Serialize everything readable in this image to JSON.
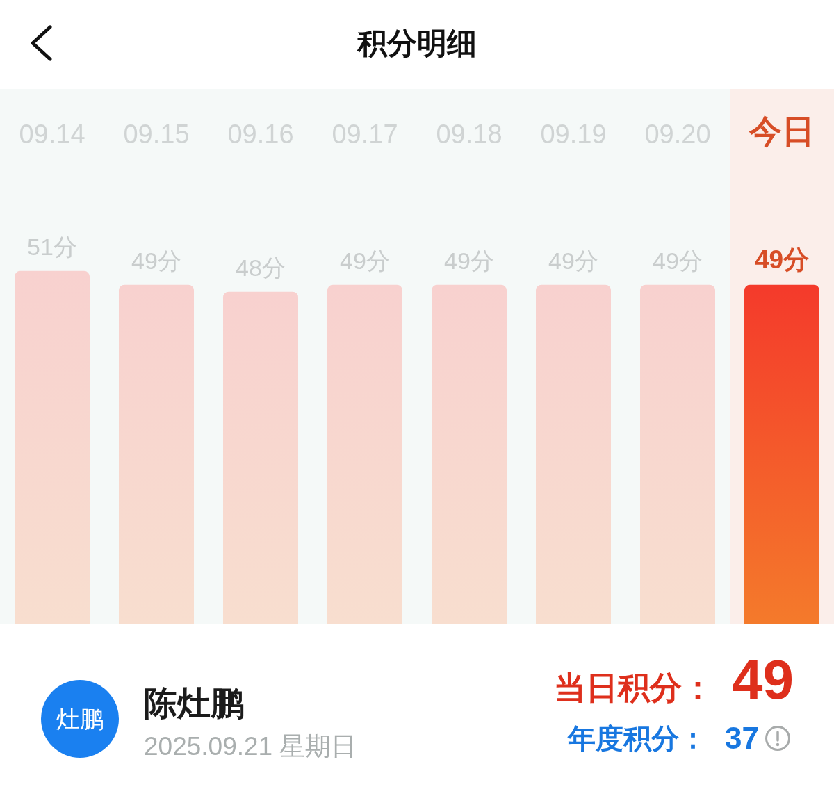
{
  "chart_data": {
    "type": "bar",
    "title": "积分明细",
    "categories": [
      "09.14",
      "09.15",
      "09.16",
      "09.17",
      "09.18",
      "09.19",
      "09.20",
      "今日"
    ],
    "values": [
      51,
      49,
      48,
      49,
      49,
      49,
      49,
      49
    ],
    "value_labels": [
      "51分",
      "49分",
      "48分",
      "49分",
      "49分",
      "49分",
      "49分",
      "49分"
    ],
    "colors": [
      "#f8d7cf",
      "#f8d7cf",
      "#f8d7cf",
      "#f8d7cf",
      "#f8d7cf",
      "#f8d7cf",
      "#f8d7cf",
      "#f4582b"
    ],
    "bands": [
      {
        "axis": "x",
        "from": "今日",
        "to": "今日",
        "color": "#fbeeea"
      }
    ],
    "tick_labels": "x",
    "annotations": [
      "灶鹏",
      "陈灶鹏",
      "2025.09.21 星期日",
      "当日积分：",
      "49",
      "年度积分：",
      "37"
    ]
  }
}
